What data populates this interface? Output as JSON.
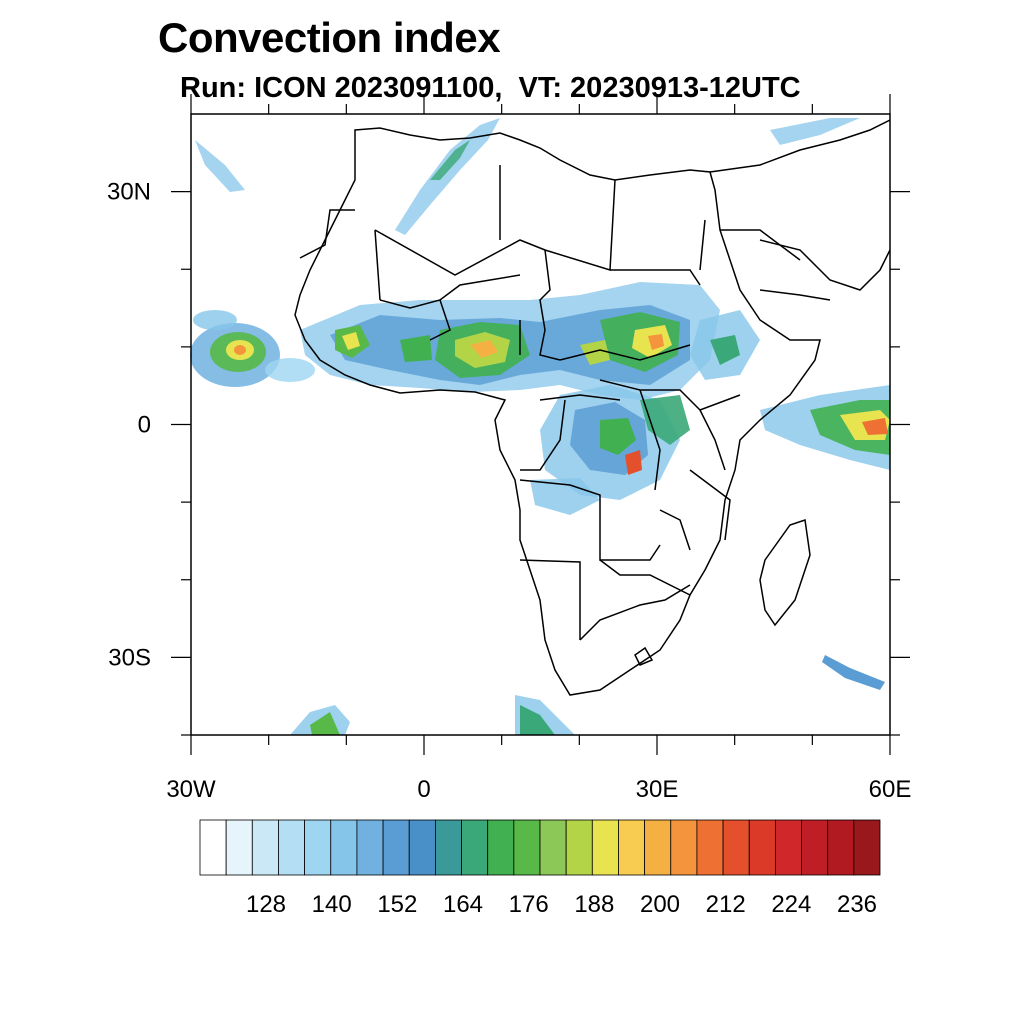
{
  "title": "Convection index",
  "subtitle": "Run: ICON 2023091100,  VT: 20230913-12UTC",
  "map": {
    "lon_range": [
      -30,
      60
    ],
    "lat_range": [
      -40,
      40
    ],
    "x_ticks": [
      {
        "lon": -30,
        "label": "30W"
      },
      {
        "lon": 0,
        "label": "0"
      },
      {
        "lon": 30,
        "label": "30E"
      },
      {
        "lon": 60,
        "label": "60E"
      }
    ],
    "y_ticks": [
      {
        "lat": 30,
        "label": "30N"
      },
      {
        "lat": 0,
        "label": "0"
      },
      {
        "lat": -30,
        "label": "30S"
      }
    ],
    "minor_x_ticks": [
      -20,
      -10,
      10,
      20,
      40,
      50
    ],
    "minor_y_ticks": [
      20,
      10,
      -10,
      -20,
      -40
    ]
  },
  "colorbar": {
    "colors": [
      "#ffffff",
      "#e6f4fb",
      "#cbe8f6",
      "#b4def4",
      "#9ed6f1",
      "#86c5ea",
      "#70b1e0",
      "#5a9dd4",
      "#4a90c8",
      "#3a9a9a",
      "#3aa878",
      "#40b050",
      "#58b848",
      "#8cc858",
      "#b4d448",
      "#e8e450",
      "#f8cc50",
      "#f4b042",
      "#f4943c",
      "#ee7032",
      "#e4502c",
      "#dc3a28",
      "#d0282a",
      "#c01e26",
      "#b01a20",
      "#98181c"
    ],
    "labels": [
      "128",
      "140",
      "152",
      "164",
      "176",
      "188",
      "200",
      "212",
      "224",
      "236"
    ],
    "label_levels": [
      128,
      140,
      152,
      164,
      176,
      188,
      200,
      212,
      224,
      236
    ]
  }
}
